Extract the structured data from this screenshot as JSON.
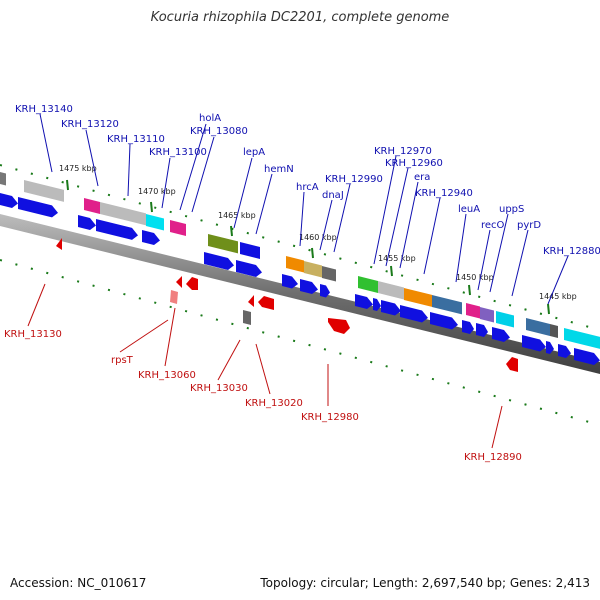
{
  "title": "Kocuria rhizophila DC2201, complete genome",
  "footer": {
    "accession": "Accession: NC_010617",
    "summary": "Topology: circular; Length: 2,697,540 bp; Genes: 2,413"
  },
  "ruler_labels": [
    "1475 kbp",
    "1470 kbp",
    "1465 kbp",
    "1460 kbp",
    "1455 kbp",
    "1450 kbp",
    "1445 kbp"
  ],
  "forward_gene_labels": [
    "KRH_13140",
    "KRH_13120",
    "KRH_13110",
    "KRH_13100",
    "holA",
    "KRH_13080",
    "lepA",
    "hemN",
    "hrcA",
    "dnaJ",
    "KRH_12990",
    "KRH_12970",
    "KRH_12960",
    "era",
    "KRH_12940",
    "leuA",
    "recO",
    "uppS",
    "pyrD",
    "KRH_12880"
  ],
  "reverse_gene_labels": [
    "KRH_13130",
    "rpsT",
    "KRH_13060",
    "KRH_13030",
    "KRH_13020",
    "KRH_12980",
    "KRH_12890"
  ],
  "colors": {
    "forward_label": "#1010b0",
    "reverse_label": "#c01010",
    "forward_gene": "#1010e0",
    "reverse_gene": "#e00000",
    "backbone": "#6f6f6f",
    "tick": "#1a7a1a"
  }
}
